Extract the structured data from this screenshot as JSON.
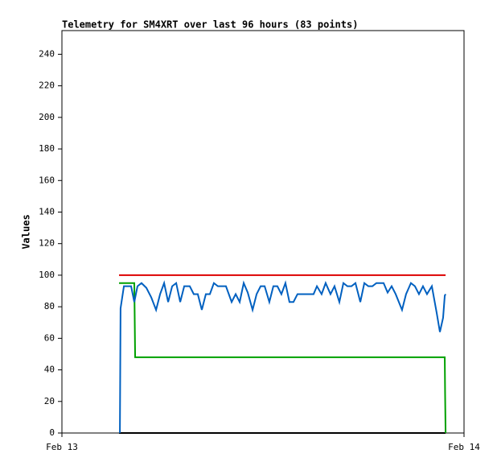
{
  "chart_data": {
    "type": "line",
    "title": "Telemetry for SM4XRT over last 96 hours (83 points)",
    "y_label": "Values",
    "xlim": [
      0,
      24
    ],
    "xticks": [
      {
        "value": 0,
        "label": "Feb 13"
      },
      {
        "value": 24,
        "label": "Feb 14"
      }
    ],
    "ylim": [
      0,
      255
    ],
    "yticks": [
      0,
      20,
      40,
      60,
      80,
      100,
      120,
      140,
      160,
      180,
      200,
      220,
      240
    ],
    "series": [
      {
        "color": "#000000",
        "x": [
          3.41,
          22.9
        ],
        "values": [
          0,
          0
        ]
      },
      {
        "color": "#dd0000",
        "x": [
          3.41,
          22.9
        ],
        "values": [
          100,
          100
        ]
      },
      {
        "color": "#00a000",
        "x": [
          3.41,
          4.32,
          4.37,
          22.85,
          22.87,
          22.9
        ],
        "values": [
          95,
          95,
          48,
          48,
          25,
          0
        ]
      },
      {
        "color": "#0060c0",
        "x": [
          3.46,
          3.5,
          3.7,
          4.13,
          4.32,
          4.51,
          4.75,
          5.04,
          5.33,
          5.62,
          5.86,
          6.1,
          6.34,
          6.58,
          6.82,
          7.06,
          7.3,
          7.63,
          7.87,
          8.11,
          8.35,
          8.59,
          8.83,
          9.07,
          9.31,
          9.79,
          10.13,
          10.37,
          10.61,
          10.85,
          11.09,
          11.38,
          11.62,
          11.86,
          12.1,
          12.38,
          12.62,
          12.86,
          13.1,
          13.34,
          13.58,
          13.82,
          14.06,
          15.02,
          15.22,
          15.5,
          15.74,
          16.03,
          16.27,
          16.56,
          16.8,
          17.04,
          17.28,
          17.52,
          17.81,
          18.05,
          18.29,
          18.53,
          18.77,
          19.2,
          19.44,
          19.68,
          19.92,
          20.3,
          20.54,
          20.83,
          21.07,
          21.31,
          21.55,
          21.79,
          22.08,
          22.37,
          22.56,
          22.75,
          22.85,
          22.9
        ],
        "values": [
          0,
          79,
          93,
          93,
          83,
          93,
          95,
          92,
          86,
          78,
          88,
          95,
          83,
          93,
          95,
          83,
          93,
          93,
          88,
          88,
          78,
          88,
          88,
          95,
          93,
          93,
          83,
          88,
          83,
          95,
          89,
          78,
          88,
          93,
          93,
          83,
          93,
          93,
          88,
          95,
          83,
          83,
          88,
          88,
          93,
          88,
          95,
          88,
          93,
          83,
          95,
          93,
          93,
          95,
          83,
          95,
          93,
          93,
          95,
          95,
          89,
          93,
          88,
          78,
          88,
          95,
          93,
          88,
          93,
          88,
          93,
          76,
          64,
          73,
          87,
          88
        ]
      }
    ]
  }
}
